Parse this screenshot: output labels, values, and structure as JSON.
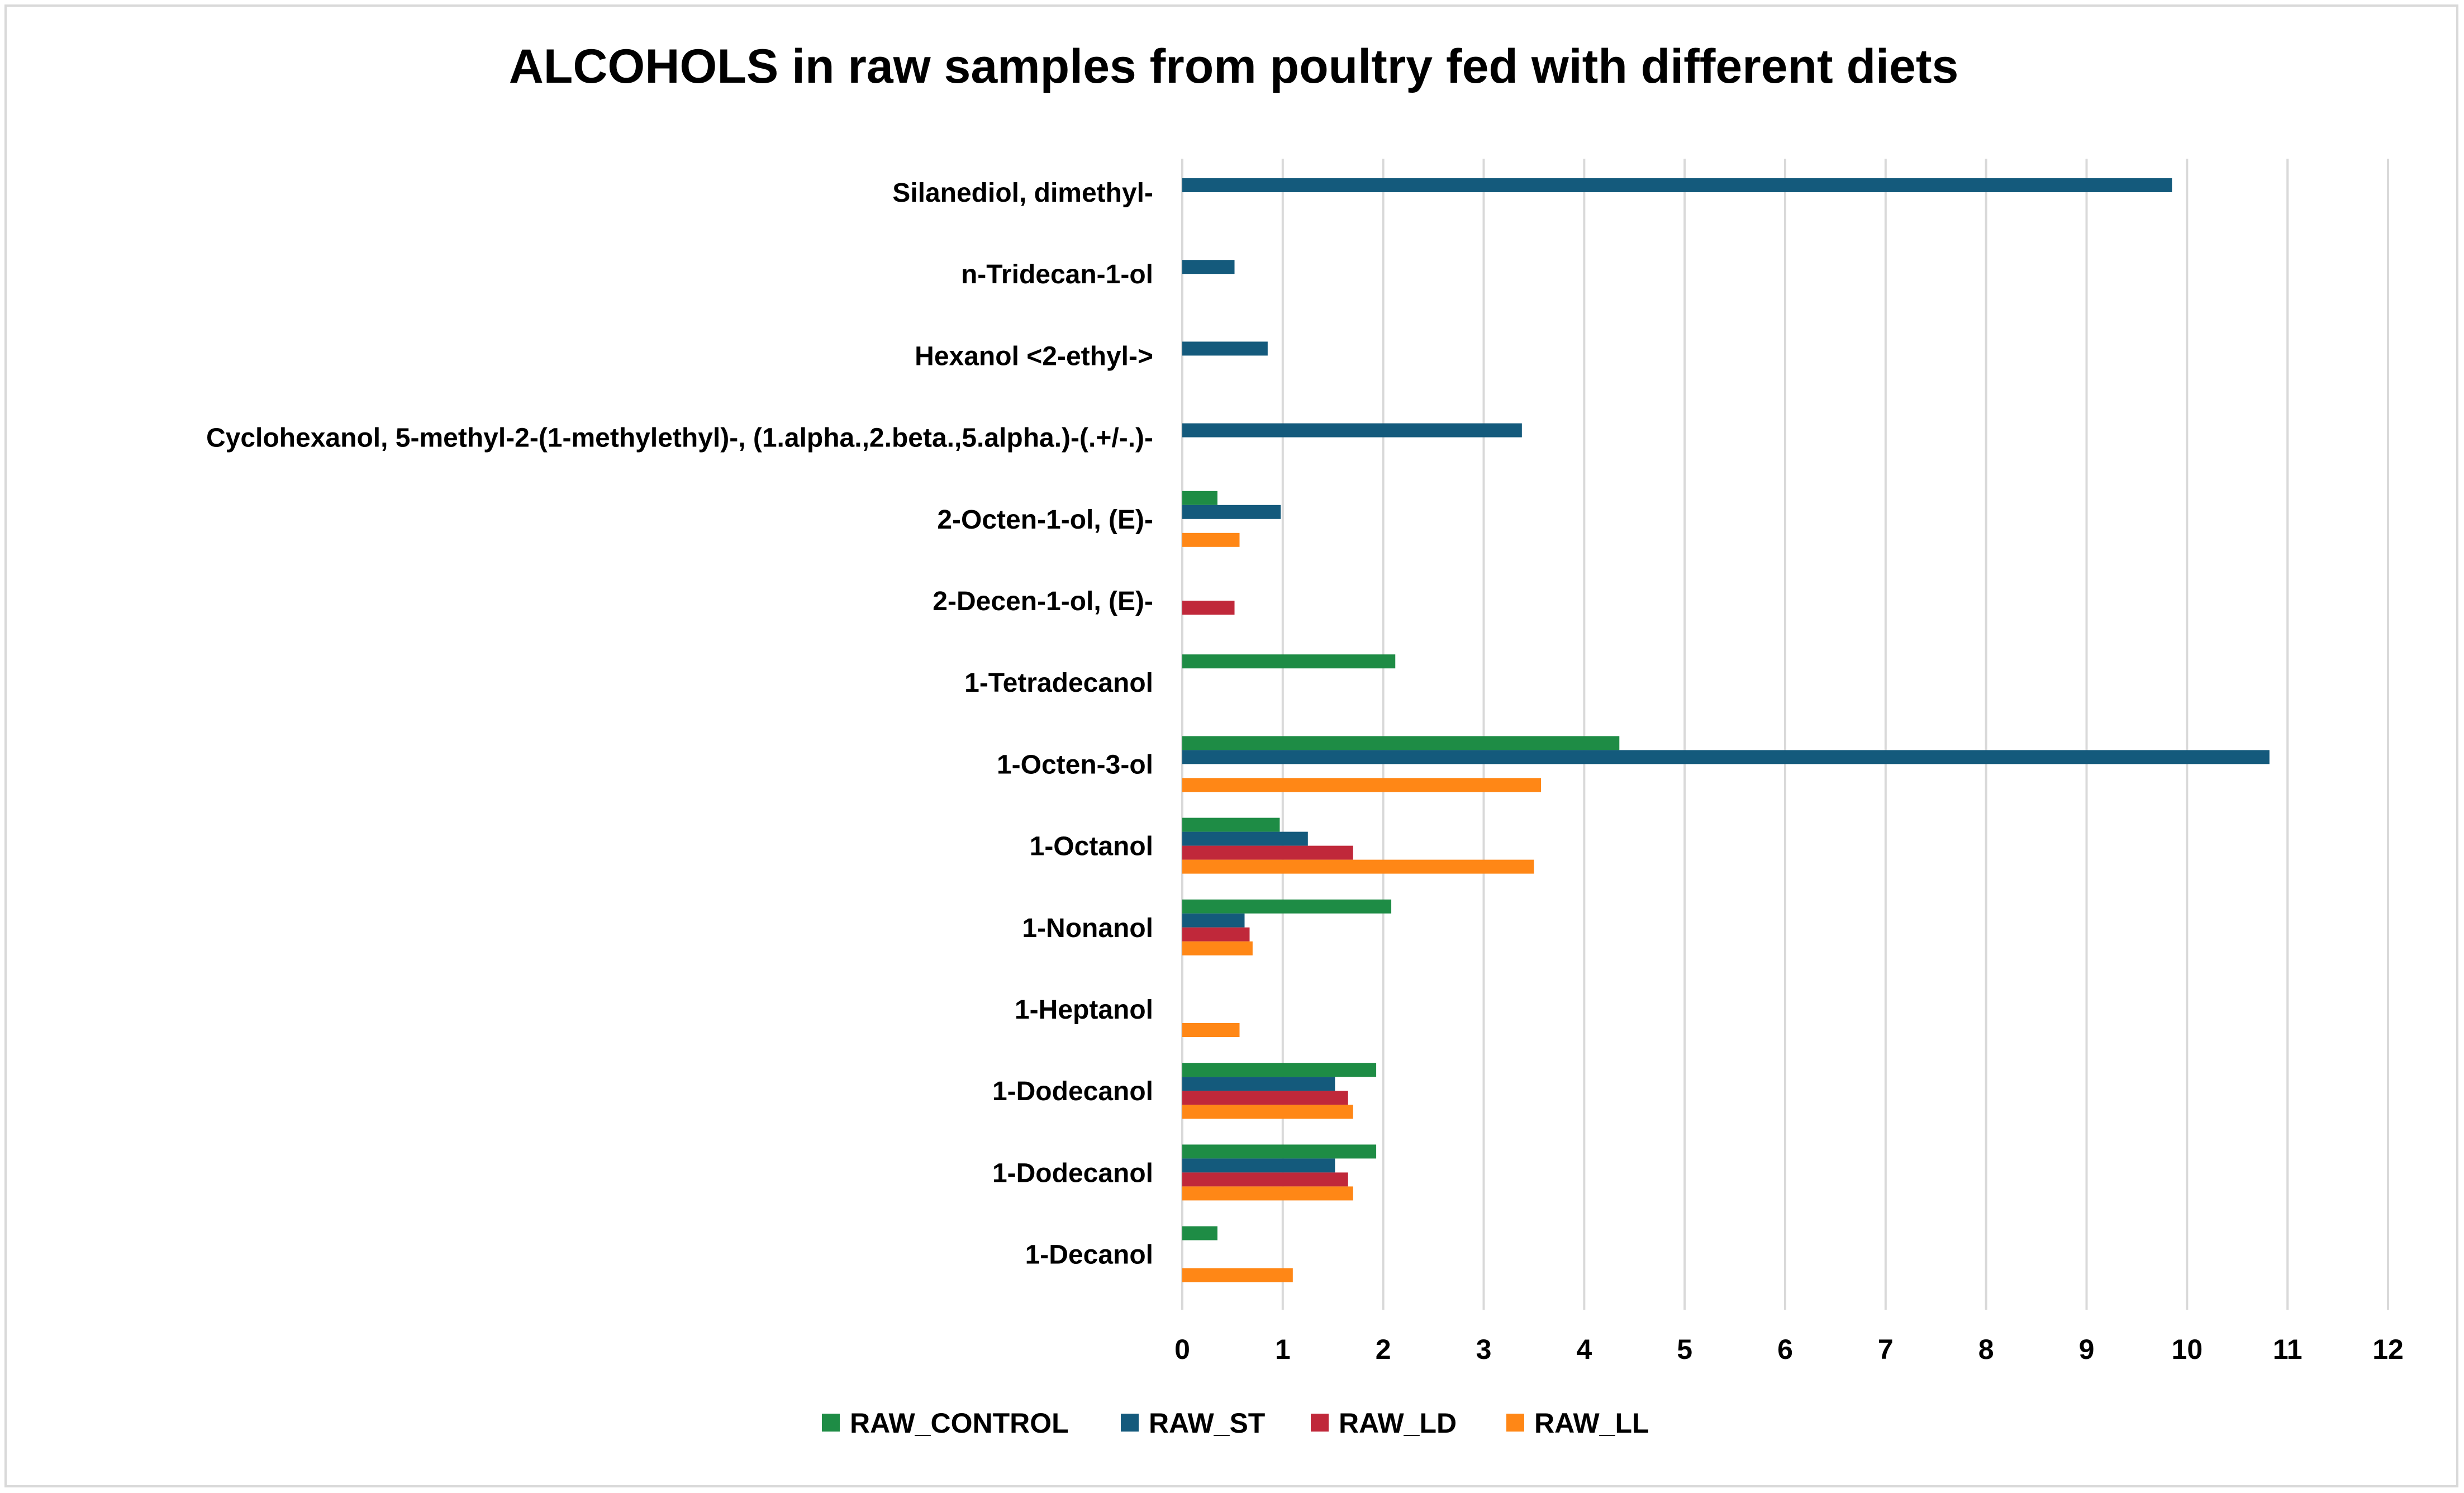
{
  "chart_data": {
    "type": "bar",
    "orientation": "horizontal",
    "title": "ALCOHOLS in raw samples from poultry fed with different diets",
    "xlabel": "",
    "ylabel": "",
    "xlim": [
      0,
      12
    ],
    "x_ticks": [
      "0",
      "1",
      "2",
      "3",
      "4",
      "5",
      "6",
      "7",
      "8",
      "9",
      "10",
      "11",
      "12"
    ],
    "grid": "vertical",
    "legend_position": "bottom",
    "categories": [
      "Silanediol, dimethyl-",
      "n-Tridecan-1-ol",
      "Hexanol <2-ethyl->",
      "Cyclohexanol, 5-methyl-2-(1-methylethyl)-, (1.alpha.,2.beta.,5.alpha.)-(.+/-.)-",
      "2-Octen-1-ol, (E)-",
      "2-Decen-1-ol, (E)-",
      "1-Tetradecanol",
      "1-Octen-3-ol",
      "1-Octanol",
      "1-Nonanol",
      "1-Heptanol",
      "1-Dodecanol",
      "1-Dodecanol",
      "1-Decanol"
    ],
    "series": [
      {
        "name": "RAW_CONTROL",
        "color": "#1e8c45",
        "values": [
          0,
          0,
          0,
          0,
          0.35,
          0,
          2.12,
          4.35,
          0.97,
          2.08,
          0,
          1.93,
          1.93,
          0.35
        ]
      },
      {
        "name": "RAW_ST",
        "color": "#145a7c",
        "values": [
          9.85,
          0.52,
          0.85,
          3.38,
          0.98,
          0,
          0,
          10.82,
          1.25,
          0.62,
          0,
          1.52,
          1.52,
          0
        ]
      },
      {
        "name": "RAW_LD",
        "color": "#c0283a",
        "values": [
          0,
          0,
          0,
          0,
          0,
          0.52,
          0,
          0,
          1.7,
          0.67,
          0,
          1.65,
          1.65,
          0
        ]
      },
      {
        "name": "RAW_LL",
        "color": "#ff8716",
        "values": [
          0,
          0,
          0,
          0,
          0.57,
          0,
          0,
          3.57,
          3.5,
          0.7,
          0.57,
          1.7,
          1.7,
          1.1
        ]
      }
    ]
  }
}
